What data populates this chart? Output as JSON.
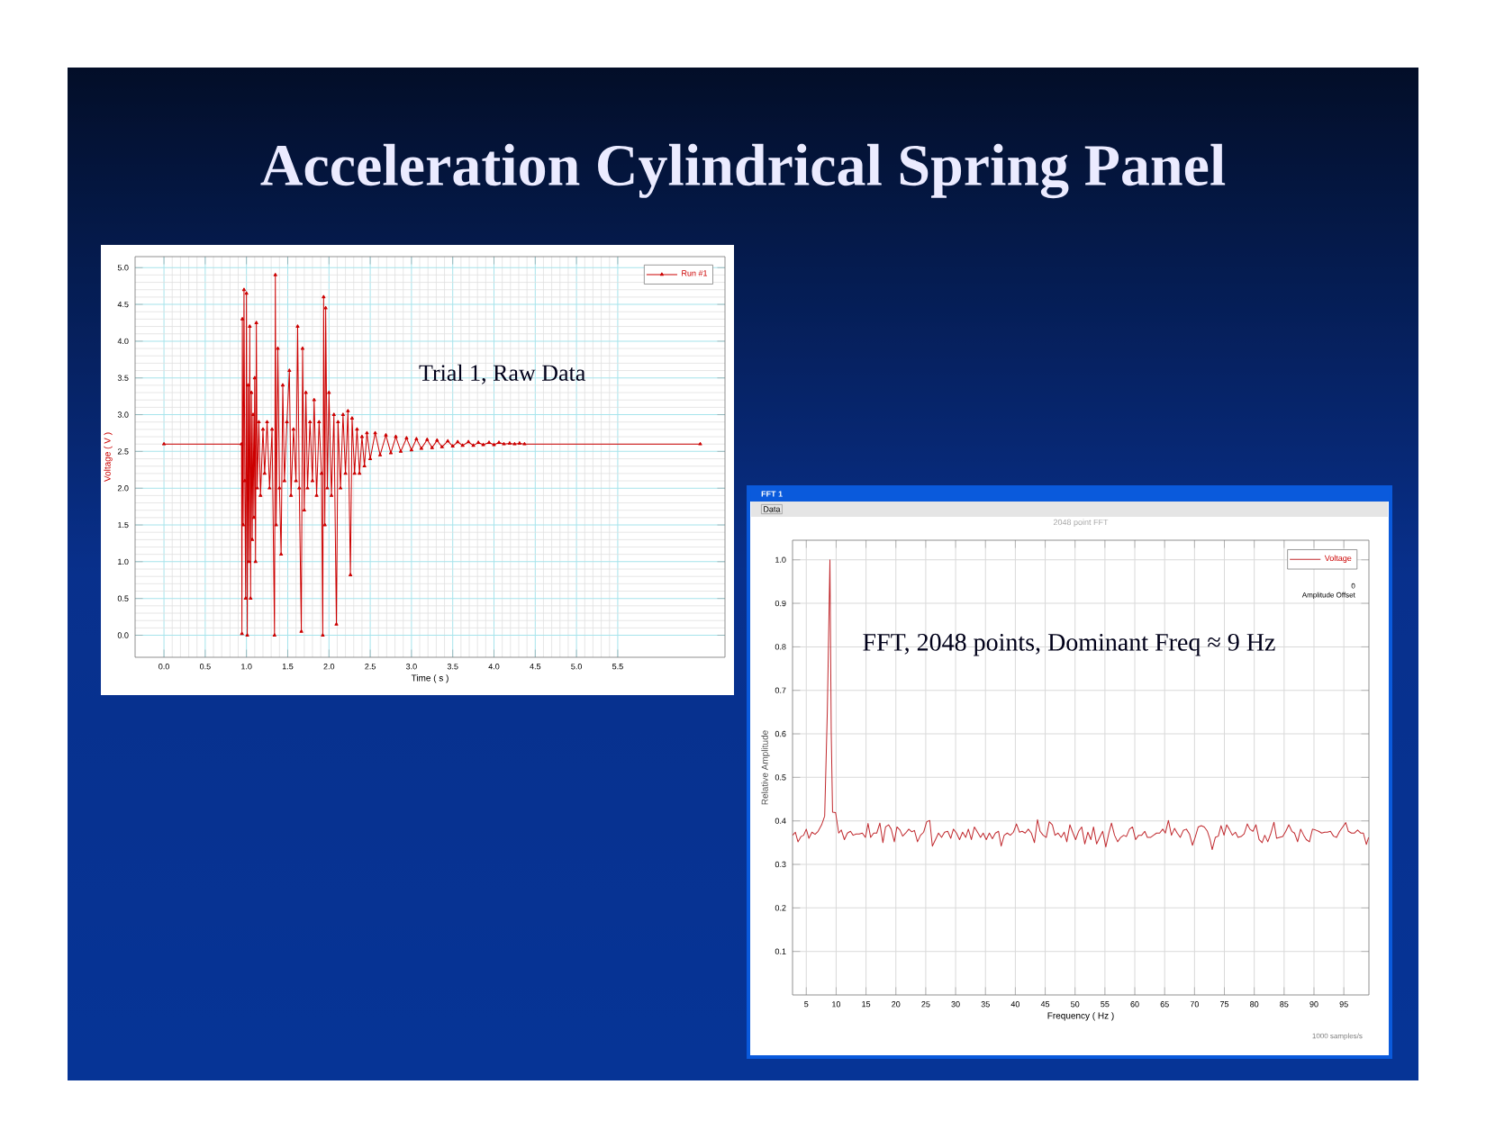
{
  "chart_data": [
    {
      "type": "line",
      "title": "Acceleration Cylindrical Spring Panel",
      "xlabel": "Time ( s )",
      "ylabel": "Voltage ( V )",
      "annotations": [
        "Trial 1, Raw Data"
      ],
      "xlim": [
        -0.35,
        6.8
      ],
      "ylim": [
        -0.3,
        5.15
      ],
      "xticks": [
        {
          "value": 0,
          "label": "0.0"
        },
        0.5,
        {
          "value": 1,
          "label": "1.0"
        },
        1.5,
        {
          "value": 2,
          "label": "2.0"
        },
        2.5,
        {
          "value": 3,
          "label": "3.0"
        },
        3.5,
        {
          "value": 4,
          "label": "4.0"
        },
        4.5,
        {
          "value": 5,
          "label": "5.0"
        },
        5.5
      ],
      "yticks": [
        {
          "value": 0,
          "label": "0.0"
        },
        0.5,
        {
          "value": 1,
          "label": "1.0"
        },
        1.5,
        {
          "value": 2,
          "label": "2.0"
        },
        2.5,
        {
          "value": 3,
          "label": "3.0"
        },
        3.5,
        {
          "value": 4,
          "label": "4.0"
        },
        4.5,
        {
          "value": 5,
          "label": "5.0"
        }
      ],
      "grid": true,
      "legend": "top right",
      "marker": "triangle",
      "x": [
        0.0,
        0.94,
        0.945,
        0.95,
        0.96,
        0.97,
        0.98,
        0.99,
        1.0,
        1.01,
        1.02,
        1.03,
        1.04,
        1.05,
        1.06,
        1.07,
        1.08,
        1.09,
        1.1,
        1.11,
        1.12,
        1.13,
        1.15,
        1.17,
        1.2,
        1.22,
        1.25,
        1.28,
        1.31,
        1.34,
        1.35,
        1.36,
        1.38,
        1.4,
        1.42,
        1.44,
        1.46,
        1.49,
        1.52,
        1.54,
        1.57,
        1.6,
        1.62,
        1.64,
        1.665,
        1.68,
        1.7,
        1.72,
        1.74,
        1.77,
        1.8,
        1.82,
        1.85,
        1.88,
        1.91,
        1.925,
        1.935,
        1.95,
        1.96,
        1.98,
        2.0,
        2.03,
        2.06,
        2.09,
        2.11,
        2.14,
        2.17,
        2.2,
        2.23,
        2.26,
        2.28,
        2.31,
        2.34,
        2.37,
        2.4,
        2.43,
        2.46,
        2.5,
        2.56,
        2.62,
        2.69,
        2.75,
        2.81,
        2.87,
        2.94,
        3.0,
        3.06,
        3.12,
        3.19,
        3.25,
        3.31,
        3.37,
        3.44,
        3.5,
        3.56,
        3.62,
        3.69,
        3.75,
        3.81,
        3.87,
        3.94,
        4.0,
        4.06,
        4.12,
        4.19,
        4.25,
        4.31,
        4.37,
        6.5
      ],
      "series": [
        {
          "name": "Run #1",
          "color": "#cc0000",
          "values": [
            2.6,
            2.6,
            0.02,
            4.3,
            1.5,
            4.7,
            2.1,
            0.5,
            4.65,
            0.0,
            3.4,
            1.0,
            4.2,
            0.5,
            3.3,
            1.3,
            3.0,
            1.6,
            3.5,
            1.0,
            4.25,
            2.0,
            2.9,
            1.9,
            2.8,
            2.2,
            2.9,
            2.0,
            2.8,
            0.0,
            4.9,
            1.5,
            3.9,
            2.0,
            1.1,
            3.4,
            2.1,
            2.9,
            3.6,
            1.9,
            2.8,
            2.1,
            4.2,
            2.0,
            0.05,
            3.9,
            1.7,
            3.3,
            2.0,
            2.9,
            2.1,
            3.2,
            1.9,
            2.9,
            2.2,
            0.0,
            4.6,
            1.5,
            4.45,
            2.0,
            3.3,
            1.9,
            3.0,
            0.15,
            2.9,
            2.0,
            3.0,
            2.2,
            3.05,
            0.82,
            2.95,
            2.2,
            2.8,
            2.2,
            2.7,
            2.3,
            2.75,
            2.4,
            2.75,
            2.45,
            2.72,
            2.48,
            2.7,
            2.5,
            2.68,
            2.52,
            2.67,
            2.54,
            2.66,
            2.55,
            2.65,
            2.56,
            2.64,
            2.57,
            2.63,
            2.58,
            2.63,
            2.58,
            2.62,
            2.59,
            2.62,
            2.59,
            2.62,
            2.6,
            2.61,
            2.6,
            2.61,
            2.6,
            2.6
          ]
        }
      ]
    },
    {
      "type": "line",
      "title": "2048 point FFT",
      "xlabel": "Frequency ( Hz )",
      "ylabel": "Relative Amplitude",
      "annotations": [
        "FFT, 2048 points, Dominant Freq ≈ 9 Hz",
        "FFT 1",
        "Data",
        "Amplitude Offset",
        "0",
        "1000 samples/s"
      ],
      "xlim": [
        2.7,
        99.2
      ],
      "ylim": [
        0,
        1.045
      ],
      "xticks": [
        5,
        10,
        15,
        20,
        25,
        30,
        35,
        40,
        45,
        50,
        55,
        60,
        65,
        70,
        75,
        80,
        85,
        90,
        95
      ],
      "yticks": [
        0.1,
        0.2,
        0.3,
        0.4,
        0.5,
        0.6,
        0.7,
        0.8,
        0.9,
        {
          "value": 1,
          "label": "1.0"
        }
      ],
      "grid": true,
      "legend": "top right",
      "marker": "none",
      "x": [
        2.73,
        3.17,
        3.61,
        4.12,
        4.56,
        5.0,
        5.44,
        5.95,
        6.47,
        6.98,
        7.57,
        8.08,
        8.52,
        8.96,
        9.18,
        9.4,
        9.91,
        10.43,
        10.87,
        11.38,
        11.89,
        12.4,
        12.84,
        13.36,
        13.87,
        14.38,
        14.9,
        15.34,
        15.78,
        16.29,
        16.8,
        17.32,
        17.83,
        18.27,
        18.78,
        19.22,
        19.74,
        20.18,
        20.69,
        21.13,
        21.64,
        22.16,
        22.67,
        23.11,
        23.62,
        24.13,
        24.65,
        25.16,
        25.67,
        26.11,
        26.63,
        27.14,
        27.65,
        28.16,
        28.68,
        29.19,
        29.63,
        30.15,
        30.66,
        31.17,
        31.69,
        32.13,
        32.64,
        33.15,
        33.67,
        34.18,
        34.62,
        35.13,
        35.65,
        36.16,
        36.67,
        37.19,
        37.63,
        38.14,
        38.65,
        39.16,
        39.68,
        40.19,
        40.7,
        41.14,
        41.66,
        42.17,
        42.68,
        43.2,
        43.71,
        44.15,
        44.66,
        45.18,
        45.69,
        46.2,
        46.64,
        47.16,
        47.67,
        48.18,
        48.62,
        49.13,
        49.65,
        50.09,
        50.6,
        51.11,
        51.63,
        52.14,
        52.65,
        53.09,
        53.61,
        54.12,
        54.63,
        55.15,
        55.66,
        56.1,
        56.61,
        57.13,
        57.64,
        58.15,
        58.59,
        59.11,
        59.62,
        60.13,
        60.65,
        61.16,
        61.67,
        62.11,
        62.63,
        63.14,
        63.65,
        64.16,
        64.68,
        65.12,
        65.63,
        66.14,
        66.66,
        67.1,
        67.61,
        68.12,
        68.64,
        69.15,
        69.66,
        70.1,
        70.62,
        71.13,
        71.64,
        72.16,
        72.6,
        72.96,
        73.48,
        73.99,
        74.43,
        74.94,
        75.38,
        75.82,
        76.33,
        76.85,
        77.29,
        77.8,
        78.31,
        78.83,
        79.27,
        79.78,
        80.29,
        80.81,
        81.32,
        81.76,
        82.27,
        82.79,
        83.3,
        83.74,
        84.25,
        84.77,
        85.28,
        85.79,
        86.3,
        86.74,
        87.26,
        87.77,
        88.28,
        88.72,
        89.24,
        89.75,
        90.26,
        90.78,
        91.29,
        91.8,
        92.24,
        92.76,
        93.27,
        93.78,
        94.3,
        94.81,
        95.32,
        95.76,
        96.28,
        96.79,
        97.3,
        97.82,
        98.26,
        98.77,
        99.14
      ],
      "series": [
        {
          "name": "Voltage",
          "color": "#c0282d",
          "values": [
            0.367,
            0.374,
            0.352,
            0.364,
            0.367,
            0.381,
            0.36,
            0.374,
            0.369,
            0.376,
            0.391,
            0.411,
            0.65,
            1.0,
            0.6,
            0.42,
            0.419,
            0.372,
            0.379,
            0.357,
            0.372,
            0.376,
            0.367,
            0.37,
            0.37,
            0.372,
            0.362,
            0.394,
            0.362,
            0.372,
            0.372,
            0.395,
            0.35,
            0.386,
            0.391,
            0.381,
            0.352,
            0.386,
            0.379,
            0.365,
            0.372,
            0.381,
            0.375,
            0.378,
            0.352,
            0.367,
            0.374,
            0.398,
            0.401,
            0.342,
            0.357,
            0.372,
            0.362,
            0.374,
            0.376,
            0.36,
            0.381,
            0.372,
            0.357,
            0.374,
            0.362,
            0.381,
            0.357,
            0.386,
            0.374,
            0.362,
            0.372,
            0.357,
            0.372,
            0.359,
            0.372,
            0.376,
            0.342,
            0.367,
            0.372,
            0.367,
            0.374,
            0.393,
            0.374,
            0.376,
            0.372,
            0.381,
            0.372,
            0.35,
            0.403,
            0.376,
            0.367,
            0.362,
            0.398,
            0.391,
            0.367,
            0.372,
            0.362,
            0.374,
            0.352,
            0.391,
            0.372,
            0.357,
            0.376,
            0.386,
            0.347,
            0.374,
            0.357,
            0.386,
            0.347,
            0.362,
            0.376,
            0.34,
            0.372,
            0.395,
            0.367,
            0.352,
            0.362,
            0.367,
            0.364,
            0.381,
            0.386,
            0.357,
            0.367,
            0.367,
            0.376,
            0.362,
            0.362,
            0.367,
            0.372,
            0.372,
            0.381,
            0.372,
            0.401,
            0.367,
            0.383,
            0.372,
            0.362,
            0.378,
            0.381,
            0.37,
            0.344,
            0.362,
            0.386,
            0.389,
            0.386,
            0.376,
            0.357,
            0.334,
            0.362,
            0.365,
            0.389,
            0.367,
            0.391,
            0.381,
            0.367,
            0.374,
            0.362,
            0.364,
            0.37,
            0.393,
            0.381,
            0.376,
            0.391,
            0.357,
            0.35,
            0.367,
            0.352,
            0.372,
            0.397,
            0.36,
            0.362,
            0.364,
            0.376,
            0.391,
            0.376,
            0.372,
            0.352,
            0.381,
            0.367,
            0.357,
            0.352,
            0.381,
            0.379,
            0.376,
            0.372,
            0.374,
            0.374,
            0.376,
            0.365,
            0.362,
            0.376,
            0.386,
            0.396,
            0.376,
            0.372,
            0.372,
            0.379,
            0.372,
            0.372,
            0.346,
            0.362
          ]
        }
      ]
    }
  ]
}
